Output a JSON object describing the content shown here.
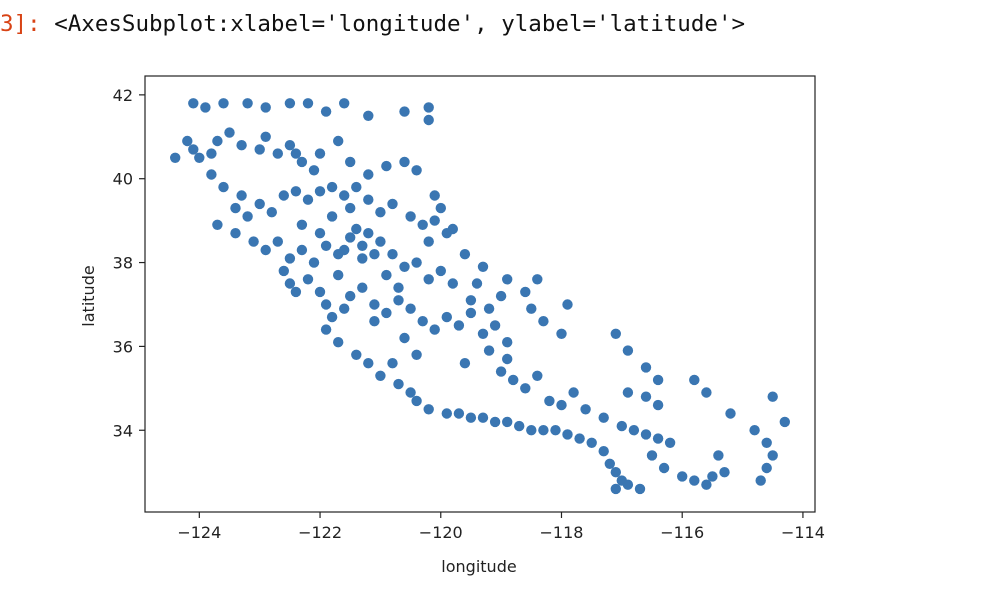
{
  "output": {
    "prompt": "3]:",
    "repr": "<AxesSubplot:xlabel='longitude', ylabel='latitude'>"
  },
  "colors": {
    "prompt": "#d84315",
    "point": "#3a76b2",
    "axes": "#222222"
  },
  "chart_data": {
    "type": "scatter",
    "title": "",
    "xlabel": "longitude",
    "ylabel": "latitude",
    "xlim": [
      -124.9,
      -113.8
    ],
    "ylim": [
      32.05,
      42.45
    ],
    "xticks": [
      -124,
      -122,
      -120,
      -118,
      -116,
      -114
    ],
    "yticks": [
      34,
      36,
      38,
      40,
      42
    ],
    "grid": false,
    "legend": null,
    "series": [
      {
        "color": "#3a76b2",
        "points": [
          [
            -124.1,
            41.8
          ],
          [
            -123.9,
            41.7
          ],
          [
            -123.6,
            41.8
          ],
          [
            -123.2,
            41.8
          ],
          [
            -122.9,
            41.7
          ],
          [
            -122.5,
            41.8
          ],
          [
            -122.2,
            41.8
          ],
          [
            -121.9,
            41.6
          ],
          [
            -121.6,
            41.8
          ],
          [
            -121.2,
            41.5
          ],
          [
            -120.6,
            41.6
          ],
          [
            -120.2,
            41.7
          ],
          [
            -120.2,
            41.4
          ],
          [
            -124.2,
            40.9
          ],
          [
            -124.1,
            40.7
          ],
          [
            -124.0,
            40.5
          ],
          [
            -123.8,
            40.6
          ],
          [
            -123.7,
            40.9
          ],
          [
            -123.5,
            41.1
          ],
          [
            -123.3,
            40.8
          ],
          [
            -123.0,
            40.7
          ],
          [
            -122.9,
            41.0
          ],
          [
            -122.7,
            40.6
          ],
          [
            -122.5,
            40.8
          ],
          [
            -122.4,
            40.6
          ],
          [
            -122.3,
            40.4
          ],
          [
            -122.1,
            40.2
          ],
          [
            -122.0,
            40.6
          ],
          [
            -121.7,
            40.9
          ],
          [
            -121.5,
            40.4
          ],
          [
            -121.2,
            40.1
          ],
          [
            -120.9,
            40.3
          ],
          [
            -120.6,
            40.4
          ],
          [
            -120.4,
            40.2
          ],
          [
            -120.1,
            39.6
          ],
          [
            -124.4,
            40.5
          ],
          [
            -123.8,
            40.1
          ],
          [
            -123.6,
            39.8
          ],
          [
            -123.3,
            39.6
          ],
          [
            -123.4,
            39.3
          ],
          [
            -123.2,
            39.1
          ],
          [
            -123.0,
            39.4
          ],
          [
            -122.8,
            39.2
          ],
          [
            -122.6,
            39.6
          ],
          [
            -122.4,
            39.7
          ],
          [
            -122.2,
            39.5
          ],
          [
            -122.0,
            39.7
          ],
          [
            -121.8,
            39.8
          ],
          [
            -121.6,
            39.6
          ],
          [
            -121.4,
            39.8
          ],
          [
            -121.2,
            39.5
          ],
          [
            -121.0,
            39.2
          ],
          [
            -120.8,
            39.4
          ],
          [
            -120.5,
            39.1
          ],
          [
            -120.3,
            38.9
          ],
          [
            -120.0,
            39.3
          ],
          [
            -119.8,
            38.8
          ],
          [
            -123.7,
            38.9
          ],
          [
            -123.4,
            38.7
          ],
          [
            -123.1,
            38.5
          ],
          [
            -122.9,
            38.3
          ],
          [
            -122.7,
            38.5
          ],
          [
            -122.5,
            38.1
          ],
          [
            -122.3,
            38.3
          ],
          [
            -122.1,
            38.0
          ],
          [
            -121.9,
            38.4
          ],
          [
            -121.7,
            38.2
          ],
          [
            -121.5,
            38.6
          ],
          [
            -121.3,
            38.4
          ],
          [
            -121.2,
            38.7
          ],
          [
            -121.0,
            38.5
          ],
          [
            -120.8,
            38.2
          ],
          [
            -120.6,
            37.9
          ],
          [
            -120.4,
            38.0
          ],
          [
            -120.2,
            37.6
          ],
          [
            -120.0,
            37.8
          ],
          [
            -119.8,
            37.5
          ],
          [
            -119.5,
            37.1
          ],
          [
            -119.2,
            36.9
          ],
          [
            -122.6,
            37.8
          ],
          [
            -122.5,
            37.5
          ],
          [
            -122.4,
            37.3
          ],
          [
            -122.2,
            37.6
          ],
          [
            -122.0,
            37.3
          ],
          [
            -121.9,
            37.0
          ],
          [
            -121.8,
            36.7
          ],
          [
            -121.6,
            36.9
          ],
          [
            -121.5,
            37.2
          ],
          [
            -121.3,
            37.4
          ],
          [
            -121.1,
            37.0
          ],
          [
            -120.9,
            36.8
          ],
          [
            -120.7,
            37.1
          ],
          [
            -120.5,
            36.9
          ],
          [
            -120.3,
            36.6
          ],
          [
            -120.1,
            36.4
          ],
          [
            -119.9,
            36.7
          ],
          [
            -119.7,
            36.5
          ],
          [
            -119.5,
            36.8
          ],
          [
            -119.3,
            36.3
          ],
          [
            -119.1,
            36.5
          ],
          [
            -118.9,
            36.1
          ],
          [
            -121.9,
            36.4
          ],
          [
            -121.7,
            36.1
          ],
          [
            -121.4,
            35.8
          ],
          [
            -121.2,
            35.6
          ],
          [
            -121.0,
            35.3
          ],
          [
            -120.8,
            35.6
          ],
          [
            -120.7,
            35.1
          ],
          [
            -120.5,
            34.9
          ],
          [
            -120.4,
            34.7
          ],
          [
            -120.2,
            34.5
          ],
          [
            -119.9,
            34.4
          ],
          [
            -119.7,
            34.4
          ],
          [
            -119.5,
            34.3
          ],
          [
            -119.3,
            34.3
          ],
          [
            -119.1,
            34.2
          ],
          [
            -118.9,
            34.2
          ],
          [
            -118.7,
            34.1
          ],
          [
            -118.5,
            34.0
          ],
          [
            -118.3,
            34.0
          ],
          [
            -118.1,
            34.0
          ],
          [
            -117.9,
            33.9
          ],
          [
            -117.7,
            33.8
          ],
          [
            -117.5,
            33.7
          ],
          [
            -117.3,
            33.5
          ],
          [
            -117.2,
            33.2
          ],
          [
            -117.1,
            33.0
          ],
          [
            -117.0,
            32.8
          ],
          [
            -117.1,
            32.6
          ],
          [
            -119.0,
            35.4
          ],
          [
            -118.8,
            35.2
          ],
          [
            -118.6,
            35.0
          ],
          [
            -118.4,
            35.3
          ],
          [
            -118.2,
            34.7
          ],
          [
            -118.0,
            34.6
          ],
          [
            -117.8,
            34.9
          ],
          [
            -117.6,
            34.5
          ],
          [
            -117.3,
            34.3
          ],
          [
            -117.0,
            34.1
          ],
          [
            -116.8,
            34.0
          ],
          [
            -116.6,
            33.9
          ],
          [
            -116.4,
            33.8
          ],
          [
            -116.2,
            33.7
          ],
          [
            -116.5,
            33.4
          ],
          [
            -116.3,
            33.1
          ],
          [
            -116.0,
            32.9
          ],
          [
            -115.8,
            32.8
          ],
          [
            -115.6,
            32.7
          ],
          [
            -116.7,
            32.6
          ],
          [
            -116.9,
            32.7
          ],
          [
            -116.9,
            34.9
          ],
          [
            -116.6,
            34.8
          ],
          [
            -116.4,
            34.6
          ],
          [
            -115.8,
            35.2
          ],
          [
            -115.6,
            34.9
          ],
          [
            -115.2,
            34.4
          ],
          [
            -114.8,
            34.0
          ],
          [
            -114.6,
            33.7
          ],
          [
            -114.5,
            33.4
          ],
          [
            -114.6,
            33.1
          ],
          [
            -114.7,
            32.8
          ],
          [
            -115.3,
            33.0
          ],
          [
            -115.5,
            32.9
          ],
          [
            -114.3,
            34.2
          ],
          [
            -114.5,
            34.8
          ],
          [
            -115.4,
            33.4
          ],
          [
            -118.3,
            36.6
          ],
          [
            -118.0,
            36.3
          ],
          [
            -118.5,
            36.9
          ],
          [
            -118.6,
            37.3
          ],
          [
            -117.9,
            37.0
          ],
          [
            -118.4,
            37.6
          ],
          [
            -118.9,
            37.6
          ],
          [
            -119.3,
            37.9
          ],
          [
            -119.6,
            38.2
          ],
          [
            -119.9,
            38.7
          ],
          [
            -120.1,
            39.0
          ],
          [
            -120.2,
            38.5
          ],
          [
            -119.4,
            37.5
          ],
          [
            -119.0,
            37.2
          ],
          [
            -117.1,
            36.3
          ],
          [
            -116.9,
            35.9
          ],
          [
            -116.6,
            35.5
          ],
          [
            -116.4,
            35.2
          ],
          [
            -121.4,
            38.8
          ],
          [
            -121.3,
            38.1
          ],
          [
            -121.1,
            38.2
          ],
          [
            -120.9,
            37.7
          ],
          [
            -120.7,
            37.4
          ],
          [
            -121.6,
            38.3
          ],
          [
            -122.0,
            38.7
          ],
          [
            -122.3,
            38.9
          ],
          [
            -121.8,
            39.1
          ],
          [
            -121.5,
            39.3
          ],
          [
            -121.7,
            37.7
          ],
          [
            -121.1,
            36.6
          ],
          [
            -120.6,
            36.2
          ],
          [
            -120.4,
            35.8
          ],
          [
            -119.6,
            35.6
          ],
          [
            -119.2,
            35.9
          ],
          [
            -118.9,
            35.7
          ]
        ]
      }
    ]
  }
}
